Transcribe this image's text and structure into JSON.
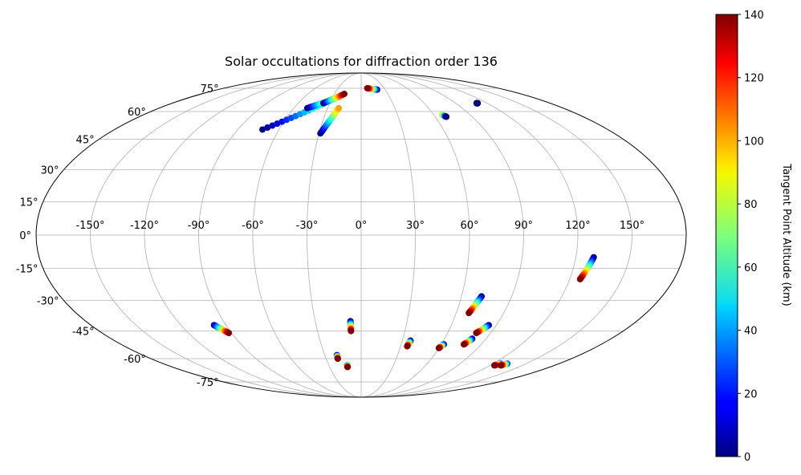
{
  "chart_data": {
    "type": "scatter",
    "projection": "mollweide",
    "title": "Solar occultations for diffraction order 136",
    "grid": true,
    "lon_ticks": [
      -150,
      -120,
      -90,
      -60,
      -30,
      0,
      30,
      60,
      90,
      120,
      150
    ],
    "lon_tick_labels": [
      "-150°",
      "-120°",
      "-90°",
      "-60°",
      "-30°",
      "0°",
      "30°",
      "60°",
      "90°",
      "120°",
      "150°"
    ],
    "lat_ticks": [
      -75,
      -60,
      -45,
      -30,
      -15,
      0,
      15,
      30,
      45,
      60,
      75
    ],
    "lat_tick_labels": [
      "-75°",
      "-60°",
      "-45°",
      "-30°",
      "-15°",
      "0°",
      "15°",
      "30°",
      "45°",
      "60°",
      "75°"
    ],
    "colorbar": {
      "label": "Tangent Point Altitude (km)",
      "colormap": "jet",
      "range": [
        0,
        140
      ],
      "ticks": [
        0,
        20,
        40,
        60,
        80,
        100,
        120,
        140
      ],
      "tick_labels": [
        "0",
        "20",
        "40",
        "60",
        "80",
        "100",
        "120",
        "140"
      ],
      "placement": "right"
    },
    "tracks": [
      {
        "lon_start": -72,
        "lat_start": 50,
        "alt_start": 0,
        "lon_end": -27,
        "lat_end": 68,
        "alt_end": 80
      },
      {
        "lon_start": -48,
        "lat_start": 62,
        "alt_start": 0,
        "lon_end": -24,
        "lat_end": 69,
        "alt_end": 140
      },
      {
        "lon_start": -36,
        "lat_start": 65,
        "alt_start": 0,
        "lon_end": -19,
        "lat_end": 71,
        "alt_end": 140
      },
      {
        "lon_start": -29,
        "lat_start": 48,
        "alt_start": 0,
        "lon_end": -20,
        "lat_end": 62,
        "alt_end": 100
      },
      {
        "lon_start": 20,
        "lat_start": 74,
        "alt_start": 0,
        "lon_end": 8,
        "lat_end": 75,
        "alt_end": 140
      },
      {
        "lon_start": 67,
        "lat_start": 58,
        "alt_start": 100,
        "lon_end": 69,
        "lat_end": 57,
        "alt_end": 0
      },
      {
        "lon_start": 110,
        "lat_start": 65,
        "alt_start": 0,
        "lon_end": 111,
        "lat_end": 65,
        "alt_end": 0
      },
      {
        "lon_start": 130,
        "lat_start": -10,
        "alt_start": 0,
        "lon_end": 126,
        "lat_end": -20,
        "alt_end": 140
      },
      {
        "lon_start": 72,
        "lat_start": -28,
        "alt_start": 0,
        "lon_end": 68,
        "lat_end": -36,
        "alt_end": 140
      },
      {
        "lon_start": 85,
        "lat_start": -42,
        "alt_start": 0,
        "lon_end": 80,
        "lat_end": -46,
        "alt_end": 140
      },
      {
        "lon_start": 80,
        "lat_start": -49,
        "alt_start": 0,
        "lon_end": 77,
        "lat_end": -52,
        "alt_end": 140
      },
      {
        "lon_start": -98,
        "lat_start": -42,
        "alt_start": 0,
        "lon_end": -92,
        "lat_end": -46,
        "alt_end": 140
      },
      {
        "lon_start": -7,
        "lat_start": -40,
        "alt_start": 0,
        "lon_end": -7,
        "lat_end": -45,
        "alt_end": 140
      },
      {
        "lon_start": 36,
        "lat_start": -50,
        "alt_start": 0,
        "lon_end": 35,
        "lat_end": -53,
        "alt_end": 140
      },
      {
        "lon_start": 62,
        "lat_start": -52,
        "alt_start": 0,
        "lon_end": 60,
        "lat_end": -54,
        "alt_end": 140
      },
      {
        "lon_start": -20,
        "lat_start": -58,
        "alt_start": 0,
        "lon_end": -20,
        "lat_end": -60,
        "alt_end": 140
      },
      {
        "lon_start": -13,
        "lat_start": -64,
        "alt_start": 20,
        "lon_end": -13,
        "lat_end": -65,
        "alt_end": 140
      },
      {
        "lon_start": 127,
        "lat_start": -63,
        "alt_start": 20,
        "lon_end": 124,
        "lat_end": -64,
        "alt_end": 140
      },
      {
        "lon_start": 133,
        "lat_start": -63,
        "alt_start": 20,
        "lon_end": 130,
        "lat_end": -64,
        "alt_end": 140
      }
    ]
  }
}
